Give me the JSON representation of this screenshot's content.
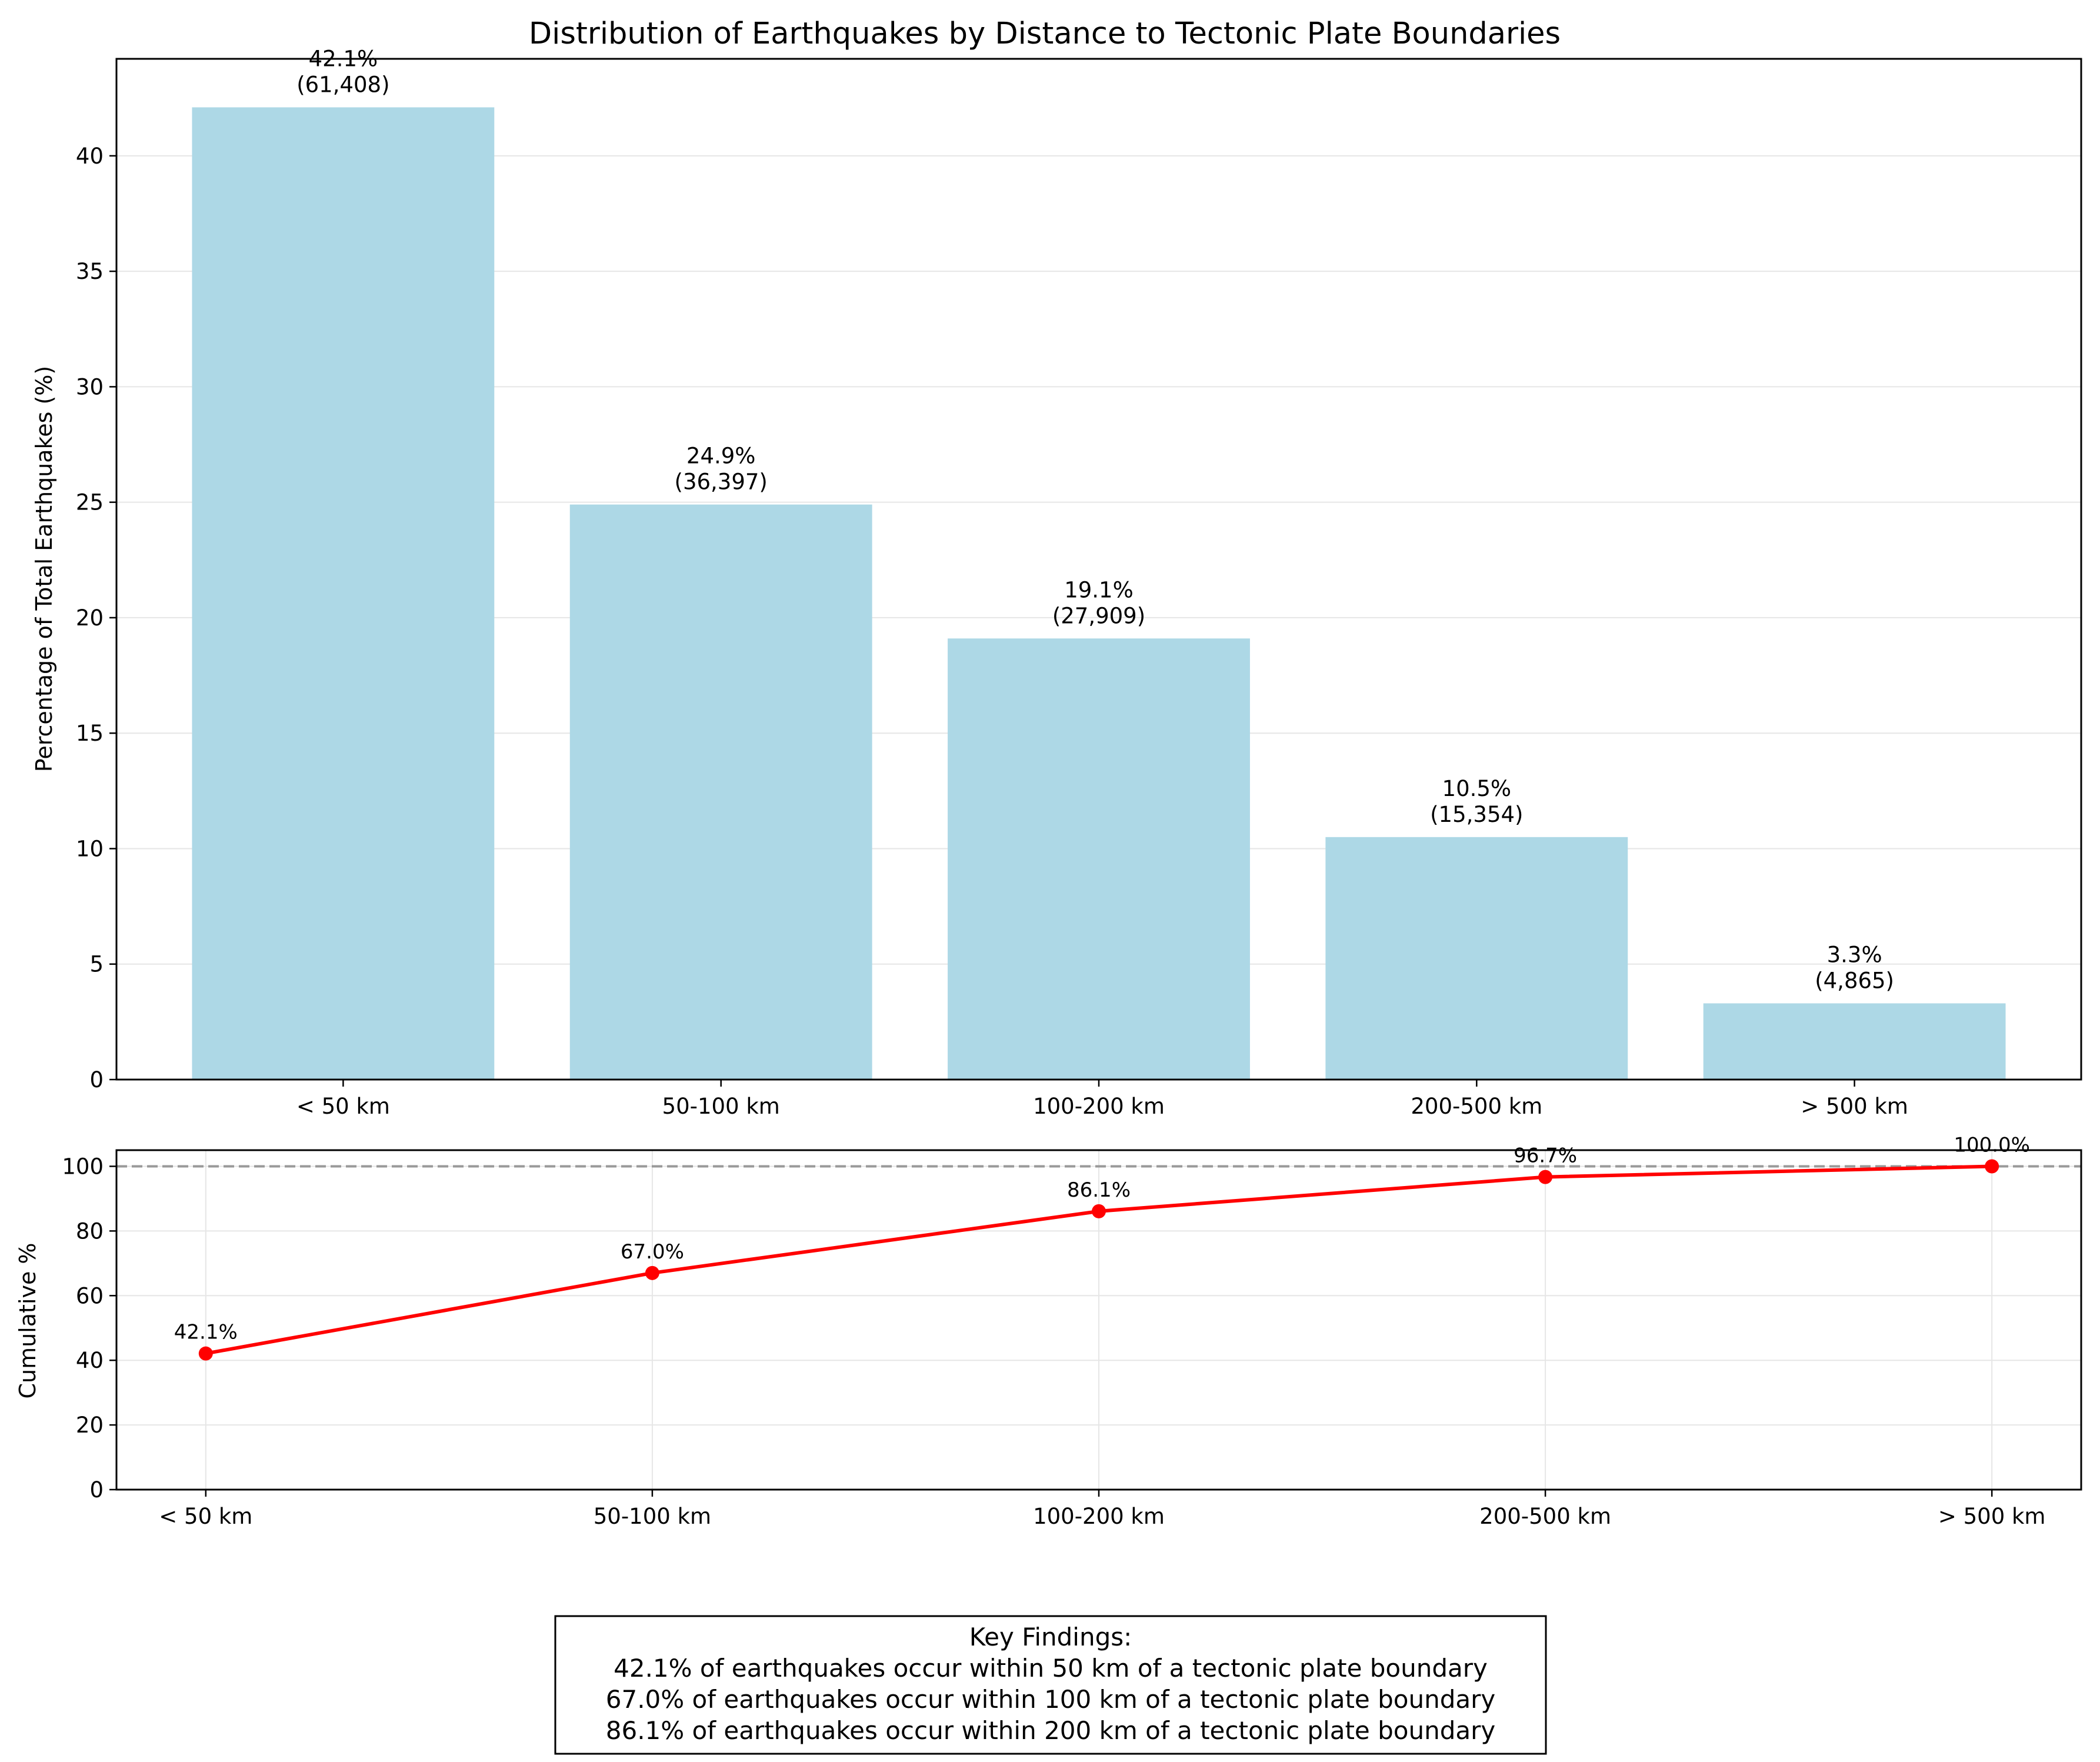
{
  "chart_data": [
    {
      "type": "bar",
      "title": "Distribution of Earthquakes by Distance to Tectonic Plate Boundaries",
      "ylabel": "Percentage of Total Earthquakes (%)",
      "xlabel": "",
      "categories": [
        "< 50 km",
        "50-100 km",
        "100-200 km",
        "200-500 km",
        "> 500 km"
      ],
      "values": [
        42.1,
        24.9,
        19.1,
        10.5,
        3.3
      ],
      "counts": [
        "(61,408)",
        "(36,397)",
        "(27,909)",
        "(15,354)",
        "(4,865)"
      ],
      "value_labels": [
        "42.1%",
        "24.9%",
        "19.1%",
        "10.5%",
        "3.3%"
      ],
      "ylim": [
        0,
        44.2
      ],
      "yticks": [
        0,
        5,
        10,
        15,
        20,
        25,
        30,
        35,
        40
      ],
      "grid": "y",
      "color": "#add8e6"
    },
    {
      "type": "line",
      "ylabel": "Cumulative %",
      "xlabel": "",
      "categories": [
        "< 50 km",
        "50-100 km",
        "100-200 km",
        "200-500 km",
        "> 500 km"
      ],
      "values": [
        42.1,
        67.0,
        86.1,
        96.7,
        100.0
      ],
      "value_labels": [
        "42.1%",
        "67.0%",
        "86.1%",
        "96.7%",
        "100.0%"
      ],
      "ylim": [
        0,
        105
      ],
      "yticks": [
        0,
        20,
        40,
        60,
        80,
        100
      ],
      "reference_line": 100,
      "grid": "both",
      "color": "#ff0000"
    }
  ],
  "findings": {
    "heading": "Key Findings:",
    "lines": [
      "42.1% of earthquakes occur within 50 km of a tectonic plate boundary",
      "67.0% of earthquakes occur within 100 km of a tectonic plate boundary",
      "86.1% of earthquakes occur within 200 km of a tectonic plate boundary"
    ]
  }
}
